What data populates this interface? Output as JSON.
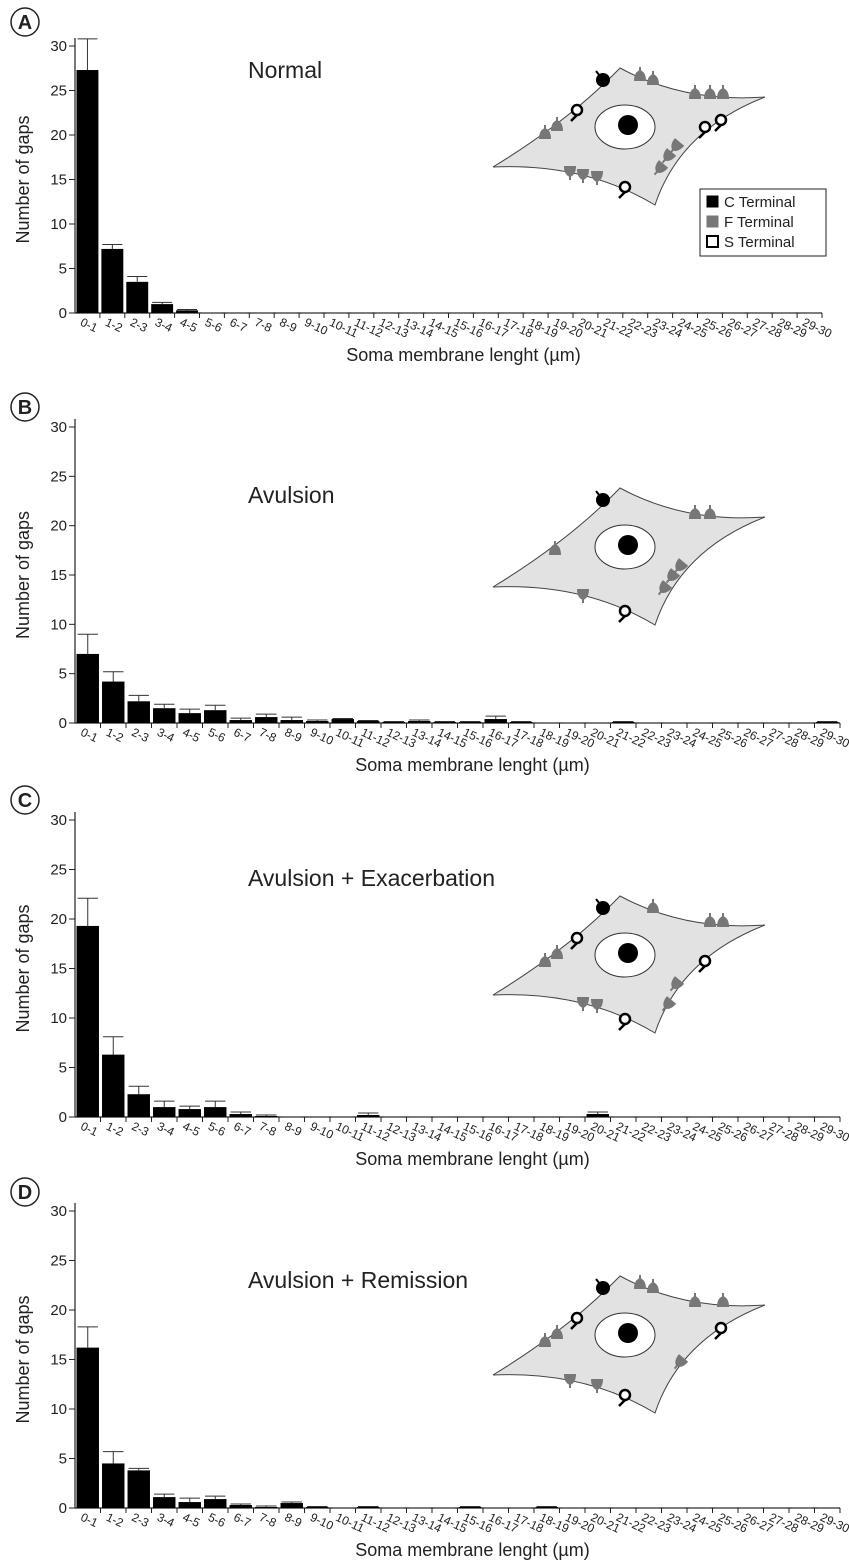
{
  "chart_data": [
    {
      "type": "bar",
      "panel": "A",
      "title": "Normal",
      "xlabel": "Soma membrane lenght (µm)",
      "ylabel": "Number of gaps",
      "color": "#000000",
      "categories": [
        "0-1",
        "1-2",
        "2-3",
        "3-4",
        "4-5",
        "5-6",
        "6-7",
        "7-8",
        "8-9",
        "9-10",
        "10-11",
        "11-12",
        "12-13",
        "13-14",
        "14-15",
        "15-16",
        "16-17",
        "17-18",
        "18-19",
        "19-20",
        "20-21",
        "21-22",
        "22-23",
        "23-24",
        "24-25",
        "25-26",
        "26-27",
        "27-28",
        "28-29",
        "29-30"
      ],
      "values": [
        27.3,
        7.2,
        3.5,
        1.0,
        0.3,
        0,
        0,
        0,
        0,
        0,
        0,
        0,
        0,
        0,
        0,
        0,
        0,
        0,
        0,
        0,
        0,
        0,
        0,
        0,
        0,
        0,
        0,
        0,
        0,
        0
      ],
      "errors": [
        3.5,
        0.5,
        0.6,
        0.2,
        0.1,
        0,
        0,
        0,
        0,
        0,
        0,
        0,
        0,
        0,
        0,
        0,
        0,
        0,
        0,
        0,
        0,
        0,
        0,
        0,
        0,
        0,
        0,
        0,
        0,
        0
      ],
      "ylim": [
        0,
        30
      ],
      "yticks": [
        0,
        5,
        10,
        15,
        20,
        25,
        30
      ]
    },
    {
      "type": "bar",
      "panel": "B",
      "title": "Avulsion",
      "xlabel": "Soma membrane lenght (µm)",
      "ylabel": "Number of gaps",
      "color": "#000000",
      "categories": [
        "0-1",
        "1-2",
        "2-3",
        "3-4",
        "4-5",
        "5-6",
        "6-7",
        "7-8",
        "8-9",
        "9-10",
        "10-11",
        "11-12",
        "12-13",
        "13-14",
        "14-15",
        "15-16",
        "16-17",
        "17-18",
        "18-19",
        "19-20",
        "20-21",
        "21-22",
        "22-23",
        "23-24",
        "24-25",
        "25-26",
        "26-27",
        "27-28",
        "28-29",
        "29-30"
      ],
      "values": [
        7.0,
        4.2,
        2.2,
        1.5,
        1.0,
        1.3,
        0.3,
        0.6,
        0.3,
        0.2,
        0.4,
        0.2,
        0.1,
        0.2,
        0.1,
        0.1,
        0.4,
        0.1,
        0,
        0,
        0,
        0.1,
        0,
        0,
        0,
        0,
        0,
        0,
        0,
        0.1
      ],
      "errors": [
        2.0,
        1.0,
        0.6,
        0.4,
        0.4,
        0.5,
        0.2,
        0.3,
        0.3,
        0.1,
        0.05,
        0.05,
        0.05,
        0.1,
        0.05,
        0.05,
        0.3,
        0.05,
        0,
        0,
        0,
        0.05,
        0,
        0,
        0,
        0,
        0,
        0,
        0,
        0.05
      ],
      "ylim": [
        0,
        30
      ],
      "yticks": [
        0,
        5,
        10,
        15,
        20,
        25,
        30
      ]
    },
    {
      "type": "bar",
      "panel": "C",
      "title": "Avulsion + Exacerbation",
      "xlabel": "Soma membrane lenght (µm)",
      "ylabel": "Number of gaps",
      "color": "#000000",
      "categories": [
        "0-1",
        "1-2",
        "2-3",
        "3-4",
        "4-5",
        "5-6",
        "6-7",
        "7-8",
        "8-9",
        "9-10",
        "10-11",
        "11-12",
        "12-13",
        "13-14",
        "14-15",
        "15-16",
        "16-17",
        "17-18",
        "18-19",
        "19-20",
        "20-21",
        "21-22",
        "22-23",
        "23-24",
        "24-25",
        "25-26",
        "26-27",
        "27-28",
        "28-29",
        "29-30"
      ],
      "values": [
        19.3,
        6.3,
        2.3,
        1.0,
        0.8,
        1.0,
        0.3,
        0.1,
        0,
        0,
        0,
        0.2,
        0,
        0,
        0,
        0,
        0,
        0,
        0,
        0,
        0.3,
        0,
        0,
        0,
        0,
        0,
        0,
        0,
        0,
        0
      ],
      "errors": [
        2.8,
        1.8,
        0.8,
        0.6,
        0.3,
        0.6,
        0.2,
        0.1,
        0,
        0,
        0,
        0.2,
        0,
        0,
        0,
        0,
        0,
        0,
        0,
        0,
        0.2,
        0,
        0,
        0,
        0,
        0,
        0,
        0,
        0,
        0
      ],
      "ylim": [
        0,
        30
      ],
      "yticks": [
        0,
        5,
        10,
        15,
        20,
        25,
        30
      ]
    },
    {
      "type": "bar",
      "panel": "D",
      "title": "Avulsion + Remission",
      "xlabel": "Soma membrane lenght (µm)",
      "ylabel": "Number of gaps",
      "color": "#000000",
      "categories": [
        "0-1",
        "1-2",
        "2-3",
        "3-4",
        "4-5",
        "5-6",
        "6-7",
        "7-8",
        "8-9",
        "9-10",
        "10-11",
        "11-12",
        "12-13",
        "13-14",
        "14-15",
        "15-16",
        "16-17",
        "17-18",
        "18-19",
        "19-20",
        "20-21",
        "21-22",
        "22-23",
        "23-24",
        "24-25",
        "25-26",
        "26-27",
        "27-28",
        "28-29",
        "29-30"
      ],
      "values": [
        16.2,
        4.5,
        3.8,
        1.1,
        0.6,
        0.9,
        0.3,
        0.1,
        0.5,
        0.1,
        0,
        0.1,
        0,
        0,
        0,
        0.1,
        0,
        0,
        0.1,
        0,
        0,
        0,
        0,
        0,
        0,
        0,
        0,
        0,
        0,
        0
      ],
      "errors": [
        2.1,
        1.2,
        0.2,
        0.3,
        0.4,
        0.3,
        0.1,
        0.1,
        0.1,
        0.05,
        0,
        0.05,
        0,
        0,
        0,
        0.05,
        0,
        0,
        0.05,
        0,
        0,
        0,
        0,
        0,
        0,
        0,
        0,
        0,
        0,
        0
      ],
      "ylim": [
        0,
        30
      ],
      "yticks": [
        0,
        5,
        10,
        15,
        20,
        25,
        30
      ]
    }
  ],
  "diagram_legend": [
    "C Terminal",
    "F Terminal",
    "S Terminal"
  ]
}
